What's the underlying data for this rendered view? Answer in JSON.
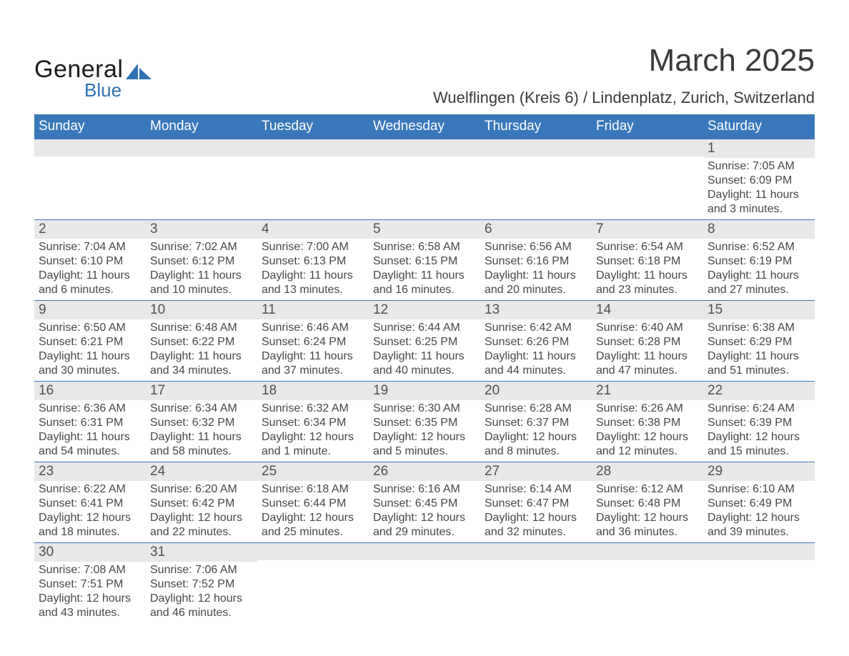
{
  "logo": {
    "text1": "General",
    "text2": "Blue",
    "shape_color": "#2f71b5"
  },
  "title": {
    "month": "March 2025",
    "location": "Wuelflingen (Kreis 6) / Lindenplatz, Zurich, Switzerland"
  },
  "colors": {
    "header_bg": "#3a77ba",
    "header_text": "#ffffff",
    "grey_bar": "#e8e8e8",
    "border": "#3a77ba",
    "text": "#474747"
  },
  "weekdays": [
    "Sunday",
    "Monday",
    "Tuesday",
    "Wednesday",
    "Thursday",
    "Friday",
    "Saturday"
  ],
  "weeks": [
    [
      {
        "blank": true
      },
      {
        "blank": true
      },
      {
        "blank": true
      },
      {
        "blank": true
      },
      {
        "blank": true
      },
      {
        "blank": true
      },
      {
        "day": "1",
        "sunrise": "Sunrise: 7:05 AM",
        "sunset": "Sunset: 6:09 PM",
        "dl1": "Daylight: 11 hours",
        "dl2": "and 3 minutes."
      }
    ],
    [
      {
        "day": "2",
        "sunrise": "Sunrise: 7:04 AM",
        "sunset": "Sunset: 6:10 PM",
        "dl1": "Daylight: 11 hours",
        "dl2": "and 6 minutes."
      },
      {
        "day": "3",
        "sunrise": "Sunrise: 7:02 AM",
        "sunset": "Sunset: 6:12 PM",
        "dl1": "Daylight: 11 hours",
        "dl2": "and 10 minutes."
      },
      {
        "day": "4",
        "sunrise": "Sunrise: 7:00 AM",
        "sunset": "Sunset: 6:13 PM",
        "dl1": "Daylight: 11 hours",
        "dl2": "and 13 minutes."
      },
      {
        "day": "5",
        "sunrise": "Sunrise: 6:58 AM",
        "sunset": "Sunset: 6:15 PM",
        "dl1": "Daylight: 11 hours",
        "dl2": "and 16 minutes."
      },
      {
        "day": "6",
        "sunrise": "Sunrise: 6:56 AM",
        "sunset": "Sunset: 6:16 PM",
        "dl1": "Daylight: 11 hours",
        "dl2": "and 20 minutes."
      },
      {
        "day": "7",
        "sunrise": "Sunrise: 6:54 AM",
        "sunset": "Sunset: 6:18 PM",
        "dl1": "Daylight: 11 hours",
        "dl2": "and 23 minutes."
      },
      {
        "day": "8",
        "sunrise": "Sunrise: 6:52 AM",
        "sunset": "Sunset: 6:19 PM",
        "dl1": "Daylight: 11 hours",
        "dl2": "and 27 minutes."
      }
    ],
    [
      {
        "day": "9",
        "sunrise": "Sunrise: 6:50 AM",
        "sunset": "Sunset: 6:21 PM",
        "dl1": "Daylight: 11 hours",
        "dl2": "and 30 minutes."
      },
      {
        "day": "10",
        "sunrise": "Sunrise: 6:48 AM",
        "sunset": "Sunset: 6:22 PM",
        "dl1": "Daylight: 11 hours",
        "dl2": "and 34 minutes."
      },
      {
        "day": "11",
        "sunrise": "Sunrise: 6:46 AM",
        "sunset": "Sunset: 6:24 PM",
        "dl1": "Daylight: 11 hours",
        "dl2": "and 37 minutes."
      },
      {
        "day": "12",
        "sunrise": "Sunrise: 6:44 AM",
        "sunset": "Sunset: 6:25 PM",
        "dl1": "Daylight: 11 hours",
        "dl2": "and 40 minutes."
      },
      {
        "day": "13",
        "sunrise": "Sunrise: 6:42 AM",
        "sunset": "Sunset: 6:26 PM",
        "dl1": "Daylight: 11 hours",
        "dl2": "and 44 minutes."
      },
      {
        "day": "14",
        "sunrise": "Sunrise: 6:40 AM",
        "sunset": "Sunset: 6:28 PM",
        "dl1": "Daylight: 11 hours",
        "dl2": "and 47 minutes."
      },
      {
        "day": "15",
        "sunrise": "Sunrise: 6:38 AM",
        "sunset": "Sunset: 6:29 PM",
        "dl1": "Daylight: 11 hours",
        "dl2": "and 51 minutes."
      }
    ],
    [
      {
        "day": "16",
        "sunrise": "Sunrise: 6:36 AM",
        "sunset": "Sunset: 6:31 PM",
        "dl1": "Daylight: 11 hours",
        "dl2": "and 54 minutes."
      },
      {
        "day": "17",
        "sunrise": "Sunrise: 6:34 AM",
        "sunset": "Sunset: 6:32 PM",
        "dl1": "Daylight: 11 hours",
        "dl2": "and 58 minutes."
      },
      {
        "day": "18",
        "sunrise": "Sunrise: 6:32 AM",
        "sunset": "Sunset: 6:34 PM",
        "dl1": "Daylight: 12 hours",
        "dl2": "and 1 minute."
      },
      {
        "day": "19",
        "sunrise": "Sunrise: 6:30 AM",
        "sunset": "Sunset: 6:35 PM",
        "dl1": "Daylight: 12 hours",
        "dl2": "and 5 minutes."
      },
      {
        "day": "20",
        "sunrise": "Sunrise: 6:28 AM",
        "sunset": "Sunset: 6:37 PM",
        "dl1": "Daylight: 12 hours",
        "dl2": "and 8 minutes."
      },
      {
        "day": "21",
        "sunrise": "Sunrise: 6:26 AM",
        "sunset": "Sunset: 6:38 PM",
        "dl1": "Daylight: 12 hours",
        "dl2": "and 12 minutes."
      },
      {
        "day": "22",
        "sunrise": "Sunrise: 6:24 AM",
        "sunset": "Sunset: 6:39 PM",
        "dl1": "Daylight: 12 hours",
        "dl2": "and 15 minutes."
      }
    ],
    [
      {
        "day": "23",
        "sunrise": "Sunrise: 6:22 AM",
        "sunset": "Sunset: 6:41 PM",
        "dl1": "Daylight: 12 hours",
        "dl2": "and 18 minutes."
      },
      {
        "day": "24",
        "sunrise": "Sunrise: 6:20 AM",
        "sunset": "Sunset: 6:42 PM",
        "dl1": "Daylight: 12 hours",
        "dl2": "and 22 minutes."
      },
      {
        "day": "25",
        "sunrise": "Sunrise: 6:18 AM",
        "sunset": "Sunset: 6:44 PM",
        "dl1": "Daylight: 12 hours",
        "dl2": "and 25 minutes."
      },
      {
        "day": "26",
        "sunrise": "Sunrise: 6:16 AM",
        "sunset": "Sunset: 6:45 PM",
        "dl1": "Daylight: 12 hours",
        "dl2": "and 29 minutes."
      },
      {
        "day": "27",
        "sunrise": "Sunrise: 6:14 AM",
        "sunset": "Sunset: 6:47 PM",
        "dl1": "Daylight: 12 hours",
        "dl2": "and 32 minutes."
      },
      {
        "day": "28",
        "sunrise": "Sunrise: 6:12 AM",
        "sunset": "Sunset: 6:48 PM",
        "dl1": "Daylight: 12 hours",
        "dl2": "and 36 minutes."
      },
      {
        "day": "29",
        "sunrise": "Sunrise: 6:10 AM",
        "sunset": "Sunset: 6:49 PM",
        "dl1": "Daylight: 12 hours",
        "dl2": "and 39 minutes."
      }
    ],
    [
      {
        "day": "30",
        "sunrise": "Sunrise: 7:08 AM",
        "sunset": "Sunset: 7:51 PM",
        "dl1": "Daylight: 12 hours",
        "dl2": "and 43 minutes."
      },
      {
        "day": "31",
        "sunrise": "Sunrise: 7:06 AM",
        "sunset": "Sunset: 7:52 PM",
        "dl1": "Daylight: 12 hours",
        "dl2": "and 46 minutes."
      },
      {
        "blank": true
      },
      {
        "blank": true
      },
      {
        "blank": true
      },
      {
        "blank": true
      },
      {
        "blank": true
      }
    ]
  ]
}
